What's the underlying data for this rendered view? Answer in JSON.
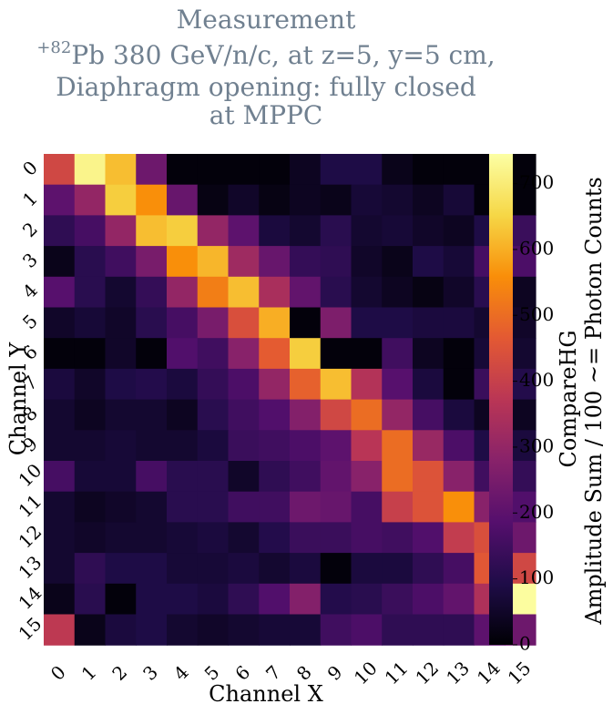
{
  "chart_data": {
    "type": "heatmap",
    "title": {
      "line1": "Measurement",
      "line2_superscript": "+82",
      "line2": "Pb 380 GeV/n/c, at z=5, y=5 cm,",
      "line3": "Diaphragm opening: fully closed",
      "line4": "at MPPC"
    },
    "xlabel": "Channel X",
    "ylabel": "Channel Y",
    "x_categories": [
      "0",
      "1",
      "2",
      "3",
      "4",
      "5",
      "6",
      "7",
      "8",
      "9",
      "10",
      "11",
      "12",
      "13",
      "14",
      "15"
    ],
    "y_categories": [
      "0",
      "1",
      "2",
      "3",
      "4",
      "5",
      "6",
      "7",
      "8",
      "9",
      "10",
      "11",
      "12",
      "13",
      "14",
      "15"
    ],
    "colorbar": {
      "label_line1": "CompareHG",
      "label_line2": "Amplitude Sum / 100 ~= Photon Counts",
      "min": 0,
      "max": 745,
      "ticks": [
        0,
        100,
        200,
        300,
        400,
        500,
        600,
        700
      ],
      "colormap": "inferno"
    },
    "values": [
      [
        420,
        720,
        620,
        230,
        10,
        10,
        10,
        10,
        40,
        90,
        90,
        30,
        10,
        10,
        10,
        10
      ],
      [
        200,
        300,
        640,
        560,
        220,
        20,
        50,
        20,
        40,
        30,
        70,
        60,
        40,
        70,
        10,
        10
      ],
      [
        120,
        160,
        300,
        620,
        640,
        300,
        200,
        80,
        60,
        110,
        60,
        70,
        50,
        40,
        90,
        140
      ],
      [
        30,
        110,
        150,
        250,
        560,
        610,
        320,
        220,
        130,
        120,
        50,
        30,
        90,
        70,
        160,
        170
      ],
      [
        190,
        110,
        60,
        130,
        300,
        530,
        620,
        340,
        210,
        110,
        60,
        40,
        20,
        50,
        110,
        40
      ],
      [
        50,
        70,
        50,
        110,
        160,
        250,
        440,
        600,
        10,
        260,
        90,
        90,
        80,
        80,
        60,
        50
      ],
      [
        10,
        10,
        50,
        10,
        180,
        150,
        280,
        470,
        640,
        10,
        10,
        150,
        40,
        10,
        70,
        60
      ],
      [
        80,
        50,
        90,
        100,
        80,
        130,
        170,
        300,
        480,
        620,
        360,
        190,
        80,
        10,
        140,
        100
      ],
      [
        60,
        40,
        60,
        60,
        40,
        110,
        150,
        180,
        270,
        420,
        500,
        300,
        160,
        80,
        40,
        40
      ],
      [
        60,
        60,
        70,
        60,
        60,
        80,
        140,
        150,
        170,
        200,
        370,
        500,
        310,
        170,
        90,
        80
      ],
      [
        160,
        70,
        70,
        160,
        110,
        110,
        50,
        120,
        150,
        210,
        280,
        500,
        450,
        280,
        150,
        130
      ],
      [
        60,
        40,
        50,
        60,
        110,
        110,
        150,
        150,
        230,
        220,
        160,
        400,
        450,
        560,
        280,
        180
      ],
      [
        60,
        50,
        60,
        60,
        70,
        80,
        60,
        100,
        140,
        140,
        160,
        150,
        180,
        390,
        440,
        230
      ],
      [
        60,
        120,
        90,
        90,
        70,
        70,
        80,
        60,
        80,
        10,
        80,
        80,
        120,
        160,
        460,
        420
      ],
      [
        30,
        110,
        10,
        90,
        90,
        80,
        120,
        180,
        270,
        100,
        110,
        140,
        170,
        210,
        350,
        740
      ],
      [
        380,
        30,
        80,
        90,
        60,
        50,
        60,
        70,
        70,
        150,
        170,
        120,
        120,
        120,
        200,
        230
      ]
    ]
  }
}
